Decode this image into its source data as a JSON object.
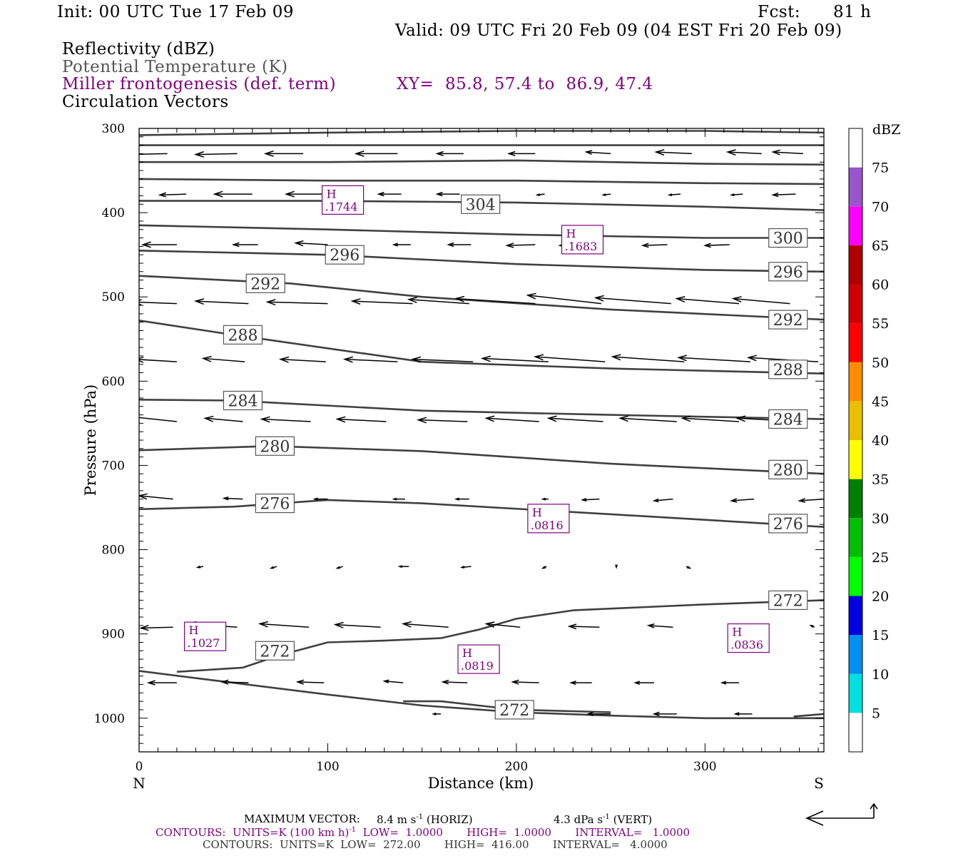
{
  "header": {
    "init": "Init: 00 UTC Tue 17 Feb 09",
    "fcst_label": "Fcst:",
    "fcst_value": "81 h",
    "valid": "Valid: 09 UTC Fri 20 Feb 09 (04 EST Fri 20 Feb 09)"
  },
  "legend_titles": {
    "reflectivity": "Reflectivity (dBZ)",
    "theta": "Potential Temperature (K)",
    "frontogenesis": "Miller frontogenesis (def. term)",
    "xy": "XY=  85.8, 57.4 to  86.9, 47.4",
    "circulation": "Circulation Vectors"
  },
  "colors": {
    "theta_line": "#404040",
    "vector": "#000000",
    "frontogenesis": "#800080",
    "colorbar": [
      "#00e0e0",
      "#0090f0",
      "#0000e0",
      "#00ff00",
      "#00c000",
      "#008000",
      "#ffff00",
      "#e8c000",
      "#ff8c00",
      "#ff0000",
      "#d00000",
      "#b00000",
      "#ff00ff",
      "#9955cc",
      "#ffffff"
    ]
  },
  "footer": {
    "max_vector_label": "MAXIMUM VECTOR:",
    "max_vector_horiz": "8.4 m s",
    "horiz_tag": "(HORIZ)",
    "max_vector_vert": "4.3 dPa s",
    "vert_tag": "(VERT)",
    "contours1_prefix": "CONTOURS:  UNITS=K (100 km h)",
    "contours1_rest": "  LOW=  1.0000       HIGH=  1.0000       INTERVAL=   1.0000",
    "contours2": "CONTOURS:  UNITS=K  LOW=  272.00       HIGH=  416.00       INTERVAL=   4.0000"
  },
  "chart_data": {
    "type": "line",
    "title": "",
    "xlabel": "Distance (km)",
    "ylabel": "Pressure (hPa)",
    "xlim": [
      0,
      363
    ],
    "ylim": [
      1040,
      300
    ],
    "x_ticks": [
      "0",
      "100",
      "200",
      "300"
    ],
    "y_ticks": [
      "300",
      "400",
      "500",
      "600",
      "700",
      "800",
      "900",
      "1000"
    ],
    "x_end_labels": {
      "left": "N",
      "right": "S"
    },
    "colorbar": {
      "unit": "dBZ",
      "labels": [
        "5",
        "10",
        "15",
        "20",
        "25",
        "30",
        "35",
        "40",
        "45",
        "50",
        "55",
        "60",
        "65",
        "70",
        "75"
      ]
    },
    "theta_contours": [
      {
        "label": "304",
        "points": [
          [
            0,
            308
          ],
          [
            100,
            305
          ],
          [
            200,
            303
          ],
          [
            300,
            303
          ],
          [
            363,
            305
          ]
        ],
        "label_at": [
          181,
          390
        ]
      },
      {
        "label": "304",
        "points": [
          [
            0,
            320
          ],
          [
            150,
            320
          ],
          [
            250,
            320
          ],
          [
            363,
            320
          ]
        ]
      },
      {
        "label": "",
        "points": [
          [
            0,
            340
          ],
          [
            100,
            340
          ],
          [
            200,
            338
          ],
          [
            300,
            342
          ],
          [
            363,
            343
          ]
        ]
      },
      {
        "label": "",
        "points": [
          [
            0,
            360
          ],
          [
            100,
            362
          ],
          [
            200,
            362
          ],
          [
            300,
            365
          ],
          [
            363,
            366
          ]
        ]
      },
      {
        "label": "304",
        "points": [
          [
            0,
            386
          ],
          [
            100,
            386
          ],
          [
            200,
            388
          ],
          [
            300,
            393
          ],
          [
            363,
            397
          ]
        ]
      },
      {
        "label": "300",
        "points": [
          [
            0,
            415
          ],
          [
            100,
            420
          ],
          [
            200,
            426
          ],
          [
            300,
            430
          ],
          [
            363,
            430
          ]
        ],
        "label_at": [
          344,
          430
        ]
      },
      {
        "label": "296",
        "points": [
          [
            0,
            445
          ],
          [
            100,
            450
          ],
          [
            200,
            461
          ],
          [
            300,
            468
          ],
          [
            363,
            470
          ]
        ],
        "label_at": [
          109,
          450
        ],
        "label_at2": [
          344,
          470
        ]
      },
      {
        "label": "292",
        "points": [
          [
            0,
            475
          ],
          [
            80,
            484
          ],
          [
            150,
            500
          ],
          [
            250,
            515
          ],
          [
            363,
            527
          ]
        ],
        "label_at": [
          67,
          484
        ],
        "label_at2": [
          344,
          527
        ]
      },
      {
        "label": "288",
        "points": [
          [
            0,
            528
          ],
          [
            50,
            545
          ],
          [
            150,
            577
          ],
          [
            250,
            585
          ],
          [
            363,
            591
          ]
        ],
        "label_at": [
          55,
          545
        ],
        "label_at2": [
          344,
          586
        ]
      },
      {
        "label": "284",
        "points": [
          [
            0,
            622
          ],
          [
            50,
            623
          ],
          [
            150,
            635
          ],
          [
            250,
            640
          ],
          [
            363,
            645
          ]
        ],
        "label_at": [
          55,
          623
        ],
        "label_at2": [
          344,
          645
        ]
      },
      {
        "label": "280",
        "points": [
          [
            0,
            682
          ],
          [
            70,
            677
          ],
          [
            150,
            683
          ],
          [
            250,
            698
          ],
          [
            363,
            710
          ]
        ],
        "label_at": [
          72,
          677
        ],
        "label_at2": [
          344,
          705
        ]
      },
      {
        "label": "276",
        "points": [
          [
            0,
            752
          ],
          [
            50,
            749
          ],
          [
            100,
            741
          ],
          [
            150,
            745
          ],
          [
            250,
            758
          ],
          [
            363,
            773
          ]
        ],
        "label_at": [
          72,
          745
        ],
        "label_at2": [
          344,
          769
        ]
      },
      {
        "label": "272",
        "points": [
          [
            20,
            945
          ],
          [
            55,
            940
          ],
          [
            75,
            925
          ],
          [
            100,
            910
          ],
          [
            130,
            908
          ],
          [
            160,
            905
          ],
          [
            180,
            895
          ],
          [
            200,
            882
          ],
          [
            230,
            872
          ],
          [
            300,
            865
          ],
          [
            363,
            860
          ]
        ],
        "label_at": [
          72,
          920
        ],
        "label_at2": [
          344,
          860
        ]
      },
      {
        "label": "272",
        "points": [
          [
            0,
            944
          ],
          [
            50,
            958
          ],
          [
            100,
            972
          ],
          [
            150,
            985
          ],
          [
            200,
            993
          ],
          [
            250,
            997
          ],
          [
            300,
            1000
          ],
          [
            363,
            1000
          ]
        ],
        "label_at": [
          199,
          990
        ]
      },
      {
        "label": "",
        "points": [
          [
            140,
            980
          ],
          [
            160,
            980
          ],
          [
            180,
            985
          ],
          [
            200,
            990
          ],
          [
            250,
            993
          ]
        ]
      },
      {
        "label": "",
        "points": [
          [
            347,
            998
          ],
          [
            363,
            995
          ]
        ]
      }
    ],
    "frontogenesis_maxima": [
      {
        "label": "H",
        "value": ".1744",
        "x": 108,
        "p": 385
      },
      {
        "label": "H",
        "value": ".1683",
        "x": 235,
        "p": 432
      },
      {
        "label": "H",
        "value": ".0816",
        "x": 217,
        "p": 763
      },
      {
        "label": "H",
        "value": ".1027",
        "x": 35,
        "p": 903
      },
      {
        "label": "H",
        "value": ".0819",
        "x": 180,
        "p": 930
      },
      {
        "label": "H",
        "value": ".0836",
        "x": 323,
        "p": 905
      }
    ],
    "vector_rows": [
      {
        "p": 330,
        "vectors": [
          [
            15,
            -22,
            1
          ],
          [
            52,
            -22,
            1
          ],
          [
            87,
            -20,
            0
          ],
          [
            137,
            -22,
            0
          ],
          [
            172,
            -14,
            0
          ],
          [
            210,
            -14,
            0
          ],
          [
            250,
            -13,
            -2
          ],
          [
            293,
            -19,
            -2
          ],
          [
            330,
            -18,
            -2
          ],
          [
            352,
            -16,
            -2
          ]
        ]
      },
      {
        "p": 378,
        "vectors": [
          [
            25,
            -14,
            1
          ],
          [
            60,
            -20,
            0
          ],
          [
            100,
            -22,
            0
          ],
          [
            139,
            -12,
            0
          ],
          [
            170,
            -12,
            0
          ],
          [
            215,
            -4,
            1
          ],
          [
            250,
            -4,
            1
          ],
          [
            287,
            -6,
            1
          ],
          [
            320,
            -6,
            1
          ],
          [
            348,
            -12,
            1
          ]
        ]
      },
      {
        "p": 438,
        "vectors": [
          [
            20,
            -18,
            0
          ],
          [
            63,
            -13,
            0
          ],
          [
            100,
            -17,
            -2
          ],
          [
            144,
            -9,
            0
          ],
          [
            176,
            -12,
            0
          ],
          [
            210,
            -15,
            1
          ],
          [
            240,
            -17,
            1
          ],
          [
            280,
            -13,
            1
          ],
          [
            313,
            -13,
            1
          ],
          [
            347,
            -10,
            2
          ]
        ]
      },
      {
        "p": 508,
        "vectors": [
          [
            20,
            -23,
            -2
          ],
          [
            58,
            -28,
            -3
          ],
          [
            100,
            -32,
            -2
          ],
          [
            145,
            -32,
            -3
          ],
          [
            175,
            -32,
            -5
          ],
          [
            210,
            -42,
            -6
          ],
          [
            245,
            -39,
            -10
          ],
          [
            282,
            -40,
            -7
          ],
          [
            318,
            -33,
            -6
          ],
          [
            345,
            -30,
            -6
          ]
        ]
      },
      {
        "p": 577,
        "vectors": [
          [
            20,
            -22,
            -3
          ],
          [
            56,
            -22,
            -4
          ],
          [
            99,
            -24,
            -3
          ],
          [
            137,
            -28,
            -3
          ],
          [
            177,
            -32,
            -3
          ],
          [
            217,
            -35,
            -4
          ],
          [
            247,
            -37,
            -6
          ],
          [
            289,
            -38,
            -6
          ],
          [
            324,
            -38,
            -5
          ],
          [
            360,
            -37,
            -5
          ]
        ]
      },
      {
        "p": 648,
        "vectors": [
          [
            20,
            -25,
            -6
          ],
          [
            55,
            -20,
            -4
          ],
          [
            91,
            -26,
            -3
          ],
          [
            131,
            -26,
            -3
          ],
          [
            174,
            -26,
            -2
          ],
          [
            212,
            -28,
            -4
          ],
          [
            246,
            -29,
            -4
          ],
          [
            285,
            -30,
            -4
          ],
          [
            318,
            -30,
            -4
          ],
          [
            350,
            -33,
            -4
          ]
        ]
      },
      {
        "p": 740,
        "vectors": [
          [
            18,
            -18,
            -4
          ],
          [
            55,
            -10,
            -1
          ],
          [
            100,
            -7,
            0
          ],
          [
            141,
            -6,
            0
          ],
          [
            175,
            -7,
            0
          ],
          [
            217,
            -3,
            0
          ],
          [
            244,
            -9,
            1
          ],
          [
            283,
            -10,
            2
          ],
          [
            326,
            -12,
            2
          ],
          [
            363,
            -13,
            2
          ]
        ]
      },
      {
        "p": 820,
        "vectors": [
          [
            34,
            -3,
            1
          ],
          [
            73,
            -3,
            2
          ],
          [
            108,
            -3,
            2
          ],
          [
            143,
            -5,
            0
          ],
          [
            176,
            -5,
            1
          ],
          [
            216,
            -2,
            2
          ],
          [
            253,
            0,
            1
          ],
          [
            290,
            2,
            2
          ]
        ]
      },
      {
        "p": 892,
        "vectors": [
          [
            18,
            -17,
            1
          ],
          [
            52,
            -26,
            -4
          ],
          [
            90,
            -26,
            -4
          ],
          [
            128,
            -24,
            -3
          ],
          [
            164,
            -24,
            -4
          ],
          [
            202,
            -18,
            -4
          ],
          [
            244,
            -16,
            -1
          ],
          [
            283,
            -13,
            -2
          ],
          [
            320,
            -6,
            -2
          ],
          [
            358,
            -2,
            -2
          ]
        ]
      },
      {
        "p": 958,
        "vectors": [
          [
            20,
            -15,
            0
          ],
          [
            58,
            -14,
            -1
          ],
          [
            98,
            -14,
            -1
          ],
          [
            140,
            -10,
            -2
          ],
          [
            174,
            -13,
            -1
          ],
          [
            212,
            -14,
            -1
          ],
          [
            240,
            -11,
            0
          ],
          [
            273,
            -10,
            0
          ],
          [
            318,
            -9,
            0
          ]
        ]
      },
      {
        "p": 995,
        "vectors": [
          [
            160,
            -4,
            0
          ],
          [
            205,
            -12,
            0
          ],
          [
            250,
            -12,
            0
          ],
          [
            285,
            -12,
            0
          ],
          [
            325,
            -9,
            0
          ]
        ]
      }
    ]
  }
}
